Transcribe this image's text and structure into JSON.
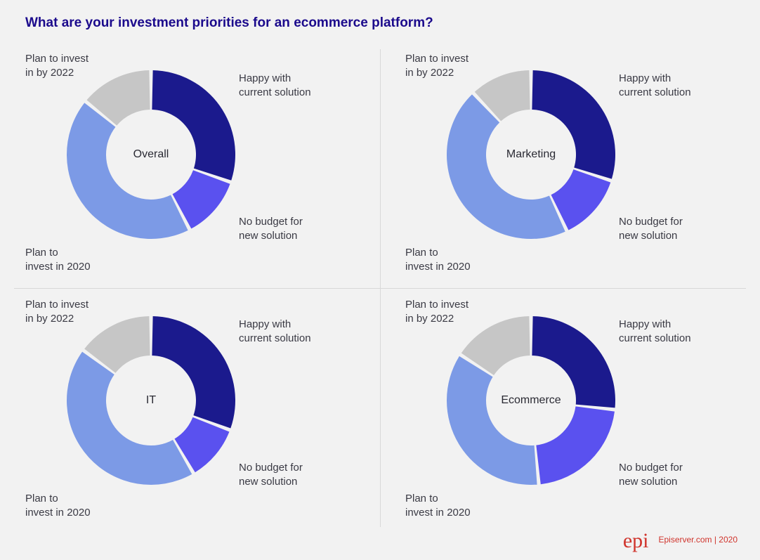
{
  "title": "What are your investment priorities for an ecommerce platform?",
  "background_color": "#f2f2f2",
  "title_color": "#1b0a8c",
  "donut": {
    "outer_radius": 120,
    "inner_radius": 64,
    "gap_deg": 2.5
  },
  "segment_colors": {
    "happy": "#1b1a8d",
    "nobudget": "#5a51ef",
    "plan2020": "#7c9ae6",
    "plan2022": "#c6c6c6"
  },
  "segment_labels": {
    "happy": "Happy with current solution",
    "nobudget": "No budget for new solution",
    "plan2020": "Plan to invest in 2020",
    "plan2022": "Plan to invest in by 2022"
  },
  "pct_text_color": "#2a2a33",
  "center_label_fontsize": 16,
  "charts": [
    {
      "name": "Overall",
      "happy": 30,
      "nobudget": 12,
      "plan2020": 43,
      "plan2022": 14
    },
    {
      "name": "Marketing",
      "happy": 30,
      "nobudget": 13,
      "plan2020": 45,
      "plan2022": 12
    },
    {
      "name": "IT",
      "happy": 31,
      "nobudget": 11,
      "plan2020": 44,
      "plan2022": 15
    },
    {
      "name": "Ecommerce",
      "happy": 27,
      "nobudget": 22,
      "plan2020": 36,
      "plan2022": 16
    }
  ],
  "footer": {
    "logo_text": "epi",
    "source": "Episerver.com",
    "sep": " | ",
    "year": "2020",
    "color": "#d0342c"
  }
}
